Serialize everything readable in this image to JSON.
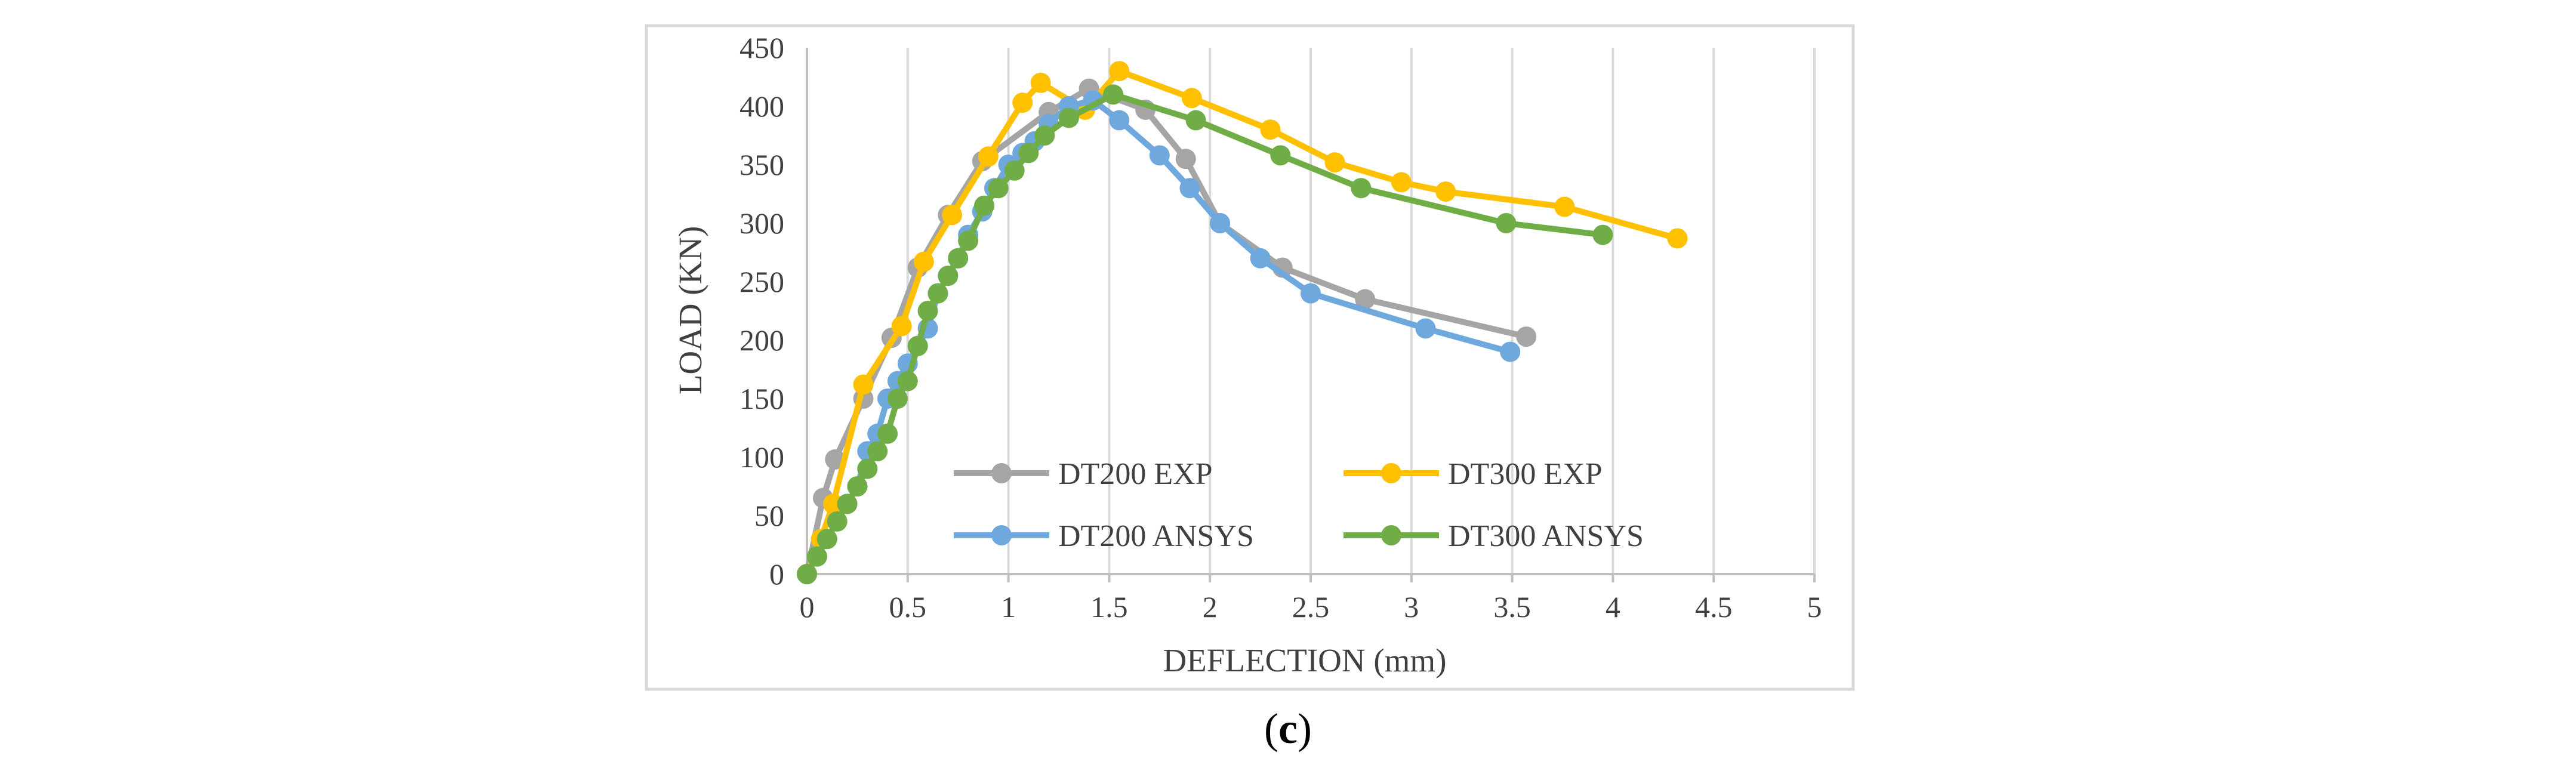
{
  "caption": {
    "open": "(",
    "letter": "c",
    "close": ")"
  },
  "chart_data": {
    "type": "line",
    "title": "",
    "xlabel": "DEFLECTION (mm)",
    "ylabel": "LOAD (KN)",
    "xlim": [
      0,
      5
    ],
    "ylim": [
      0,
      450
    ],
    "xticks": [
      0,
      0.5,
      1,
      1.5,
      2,
      2.5,
      3,
      3.5,
      4,
      4.5,
      5
    ],
    "xtick_labels": [
      "0",
      "0.5",
      "1",
      "1.5",
      "2",
      "2.5",
      "3",
      "3.5",
      "4",
      "4.5",
      "5"
    ],
    "yticks": [
      0,
      50,
      100,
      150,
      200,
      250,
      300,
      350,
      400,
      450
    ],
    "ytick_labels": [
      "0",
      "50",
      "100",
      "150",
      "200",
      "250",
      "300",
      "350",
      "400",
      "450"
    ],
    "grid": "vertical",
    "legend_position": "inside-bottom",
    "series": [
      {
        "name": "DT200 EXP",
        "color": "#a5a5a5",
        "x": [
          0,
          0.08,
          0.14,
          0.28,
          0.42,
          0.55,
          0.7,
          0.87,
          1.2,
          1.4,
          1.68,
          1.88,
          2.05,
          2.36,
          2.77,
          3.57
        ],
        "y": [
          0,
          65,
          98,
          150,
          202,
          262,
          307,
          353,
          395,
          415,
          397,
          355,
          300,
          262,
          235,
          203
        ]
      },
      {
        "name": "DT300 EXP",
        "color": "#ffc000",
        "x": [
          0,
          0.07,
          0.13,
          0.28,
          0.47,
          0.58,
          0.72,
          0.9,
          1.07,
          1.16,
          1.38,
          1.55,
          1.91,
          2.3,
          2.62,
          2.95,
          3.17,
          3.76,
          4.32
        ],
        "y": [
          0,
          30,
          60,
          162,
          212,
          267,
          307,
          357,
          403,
          420,
          397,
          430,
          407,
          380,
          352,
          335,
          327,
          314,
          287
        ]
      },
      {
        "name": "DT200 ANSYS",
        "color": "#6fa8dc",
        "x": [
          0,
          0.05,
          0.1,
          0.15,
          0.2,
          0.25,
          0.3,
          0.35,
          0.4,
          0.45,
          0.5,
          0.55,
          0.6,
          0.65,
          0.7,
          0.75,
          0.8,
          0.87,
          0.93,
          1.0,
          1.07,
          1.13,
          1.2,
          1.3,
          1.42,
          1.55,
          1.75,
          1.9,
          2.05,
          2.25,
          2.5,
          3.07,
          3.49
        ],
        "y": [
          0,
          15,
          30,
          45,
          60,
          75,
          105,
          120,
          150,
          165,
          180,
          195,
          210,
          240,
          255,
          270,
          290,
          310,
          330,
          350,
          360,
          370,
          385,
          400,
          405,
          388,
          358,
          330,
          300,
          270,
          240,
          210,
          190
        ]
      },
      {
        "name": "DT300 ANSYS",
        "color": "#70ad47",
        "x": [
          0,
          0.05,
          0.1,
          0.15,
          0.2,
          0.25,
          0.3,
          0.35,
          0.4,
          0.45,
          0.5,
          0.55,
          0.6,
          0.65,
          0.7,
          0.75,
          0.8,
          0.88,
          0.95,
          1.03,
          1.1,
          1.18,
          1.3,
          1.52,
          1.93,
          2.35,
          2.75,
          3.47,
          3.95
        ],
        "y": [
          0,
          15,
          30,
          45,
          60,
          75,
          90,
          105,
          120,
          150,
          165,
          195,
          225,
          240,
          255,
          270,
          285,
          315,
          330,
          345,
          360,
          375,
          390,
          410,
          388,
          358,
          330,
          300,
          290
        ]
      }
    ]
  }
}
